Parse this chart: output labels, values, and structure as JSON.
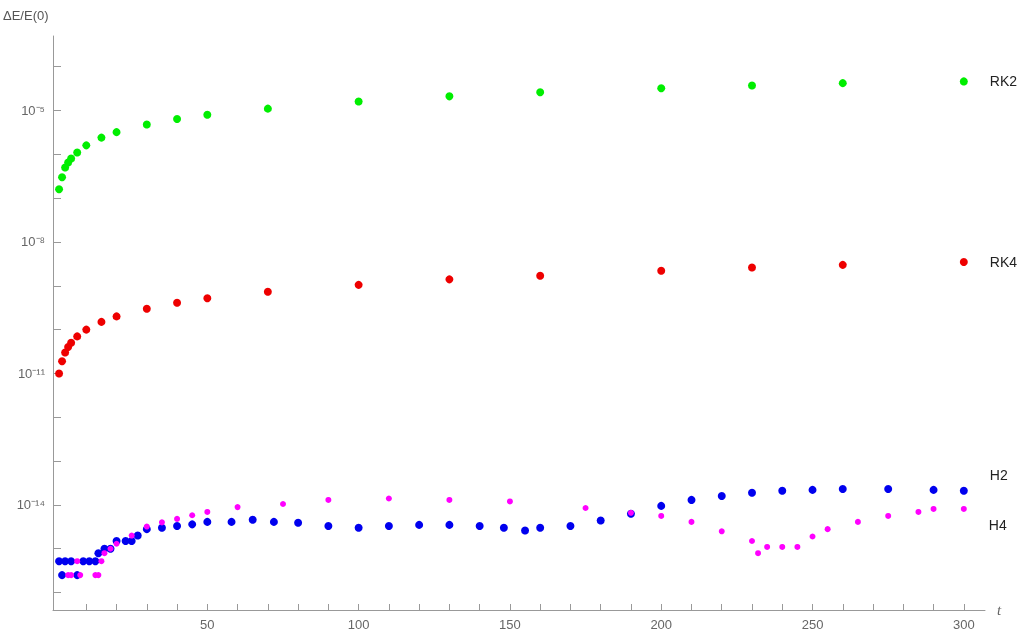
{
  "chart_data": {
    "type": "scatter",
    "ylabel": "ΔE/E(0)",
    "xlabel": "t",
    "log": "y",
    "marker": "circle",
    "grid": false,
    "xlim": [
      -1,
      307
    ],
    "xticks": [
      {
        "value": 10,
        "label": null
      },
      {
        "value": 20,
        "label": null
      },
      {
        "value": 30,
        "label": null
      },
      {
        "value": 40,
        "label": null
      },
      50,
      {
        "value": 60,
        "label": null
      },
      {
        "value": 70,
        "label": null
      },
      {
        "value": 80,
        "label": null
      },
      {
        "value": 90,
        "label": null
      },
      100,
      {
        "value": 110,
        "label": null
      },
      {
        "value": 120,
        "label": null
      },
      {
        "value": 130,
        "label": null
      },
      {
        "value": 140,
        "label": null
      },
      150,
      {
        "value": 160,
        "label": null
      },
      {
        "value": 170,
        "label": null
      },
      {
        "value": 180,
        "label": null
      },
      {
        "value": 190,
        "label": null
      },
      200,
      {
        "value": 210,
        "label": null
      },
      {
        "value": 220,
        "label": null
      },
      {
        "value": 230,
        "label": null
      },
      {
        "value": 240,
        "label": null
      },
      250,
      {
        "value": 260,
        "label": null
      },
      {
        "value": 270,
        "label": null
      },
      {
        "value": 280,
        "label": null
      },
      {
        "value": 290,
        "label": null
      },
      300
    ],
    "ylim": [
      4e-17,
      0.0005
    ],
    "yticks": [
      {
        "value": 1e-16,
        "label": null
      },
      {
        "value": 1e-15,
        "label": null
      },
      {
        "value": 1e-14,
        "label": "10⁻¹⁴"
      },
      {
        "value": 1e-13,
        "label": null
      },
      {
        "value": 1e-12,
        "label": null
      },
      {
        "value": 1e-11,
        "label": "10⁻¹¹"
      },
      {
        "value": 1e-10,
        "label": null
      },
      {
        "value": 1e-09,
        "label": null
      },
      {
        "value": 1e-08,
        "label": "10⁻⁸"
      },
      {
        "value": 1e-07,
        "label": null
      },
      {
        "value": 1e-06,
        "label": null
      },
      {
        "value": 1e-05,
        "label": "10⁻⁵"
      },
      {
        "value": 0.0001,
        "label": null
      }
    ],
    "series": [
      {
        "name": "RK2",
        "color": "#00ee00",
        "x": [
          1,
          2,
          3,
          4,
          5,
          7,
          10,
          15,
          20,
          30,
          40,
          50,
          70,
          100,
          130,
          160,
          200,
          230,
          260,
          300
        ],
        "values": [
          1.6e-07,
          3e-07,
          5e-07,
          6.5e-07,
          8e-07,
          1.1e-06,
          1.6e-06,
          2.4e-06,
          3.2e-06,
          4.8e-06,
          6.4e-06,
          8e-06,
          1.1e-05,
          1.6e-05,
          2.1e-05,
          2.6e-05,
          3.2e-05,
          3.7e-05,
          4.2e-05,
          4.6e-05
        ]
      },
      {
        "name": "RK4",
        "color": "#ee0000",
        "x": [
          1,
          2,
          3,
          4,
          5,
          7,
          10,
          15,
          20,
          30,
          40,
          50,
          70,
          100,
          130,
          160,
          200,
          230,
          260,
          300
        ],
        "values": [
          1e-11,
          1.9e-11,
          3e-11,
          4e-11,
          5e-11,
          7e-11,
          1e-10,
          1.5e-10,
          2e-10,
          3e-10,
          4.1e-10,
          5.2e-10,
          7.3e-10,
          1.05e-09,
          1.4e-09,
          1.7e-09,
          2.2e-09,
          2.6e-09,
          3e-09,
          3.5e-09
        ]
      },
      {
        "name": "H2",
        "color": "#0000ee",
        "x": [
          1,
          2,
          3,
          5,
          7,
          9,
          11,
          13,
          14,
          16,
          18,
          20,
          23,
          25,
          27,
          30,
          35,
          40,
          45,
          50,
          58,
          65,
          72,
          80,
          90,
          100,
          110,
          120,
          130,
          140,
          148,
          155,
          160,
          170,
          180,
          190,
          200,
          210,
          220,
          230,
          240,
          250,
          260,
          275,
          290,
          300
        ],
        "values": [
          5.2e-16,
          2.5e-16,
          5.2e-16,
          5.2e-16,
          2.5e-16,
          5.2e-16,
          5.2e-16,
          5.2e-16,
          7.9e-16,
          1e-15,
          1e-15,
          1.5e-15,
          1.5e-15,
          1.5e-15,
          2e-15,
          2.8e-15,
          3e-15,
          3.3e-15,
          3.6e-15,
          4.1e-15,
          4.1e-15,
          4.6e-15,
          4.1e-15,
          3.9e-15,
          3.3e-15,
          3e-15,
          3.3e-15,
          3.5e-15,
          3.5e-15,
          3.3e-15,
          3e-15,
          2.6e-15,
          3e-15,
          3.3e-15,
          4.4e-15,
          6.3e-15,
          9.5e-15,
          1.3e-14,
          1.6e-14,
          1.9e-14,
          2.1e-14,
          2.2e-14,
          2.3e-14,
          2.3e-14,
          2.2e-14,
          2.1e-14
        ]
      },
      {
        "name": "H4",
        "color": "#ff00ff",
        "x": [
          4,
          5,
          7,
          8,
          13,
          14,
          15,
          16,
          18,
          20,
          25,
          30,
          35,
          40,
          45,
          50,
          60,
          75,
          90,
          110,
          130,
          150,
          175,
          190,
          200,
          210,
          220,
          230,
          232,
          235,
          240,
          245,
          250,
          255,
          265,
          275,
          285,
          290,
          300
        ],
        "values": [
          2.5e-16,
          2.5e-16,
          5.2e-16,
          2.5e-16,
          2.5e-16,
          2.5e-16,
          5.2e-16,
          7.9e-16,
          1e-15,
          1.3e-15,
          2e-15,
          3.2e-15,
          4e-15,
          4.8e-15,
          5.8e-15,
          6.9e-15,
          8.9e-15,
          1.05e-14,
          1.3e-14,
          1.4e-14,
          1.3e-14,
          1.2e-14,
          8.5e-15,
          6.6e-15,
          5.6e-15,
          4.1e-15,
          2.5e-15,
          1.5e-15,
          7.9e-16,
          1.1e-15,
          1.1e-15,
          1.1e-15,
          1.9e-15,
          2.8e-15,
          4.1e-15,
          5.6e-15,
          6.9e-15,
          8.1e-15,
          8.1e-15
        ]
      }
    ]
  }
}
